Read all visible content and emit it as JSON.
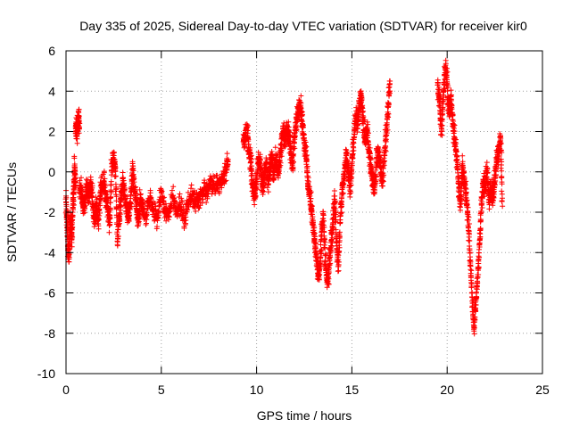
{
  "chart_data": {
    "type": "scatter",
    "title": "Day 335 of 2025, Sidereal Day-to-day VTEC variation (SDTVAR) for receiver kir0",
    "xlabel": "GPS time / hours",
    "ylabel": "SDTVAR / TECUs",
    "xlim": [
      0,
      25
    ],
    "ylim": [
      -10,
      6
    ],
    "xticks": [
      0,
      5,
      10,
      15,
      20,
      25
    ],
    "yticks": [
      -10,
      -8,
      -6,
      -4,
      -2,
      0,
      2,
      4,
      6
    ],
    "grid": true,
    "marker": "+",
    "colors": {
      "series": "#ff0000",
      "axis": "#000000",
      "grid": "#a0a0a0"
    },
    "series": [
      {
        "name": "SDTVAR",
        "segments": [
          {
            "x": [
              0.0,
              0.05,
              0.1,
              0.15,
              0.2,
              0.25,
              0.3,
              0.35,
              0.4,
              0.45,
              0.5
            ],
            "y": [
              -1.2,
              -2.5,
              -3.8,
              -4.1,
              -3.0,
              -2.2,
              -3.5,
              -2.0,
              -1.0,
              0.3,
              -0.5
            ]
          },
          {
            "x": [
              0.5,
              0.55,
              0.6,
              0.65,
              0.7
            ],
            "y": [
              2.0,
              2.4,
              1.9,
              3.0,
              2.2
            ]
          },
          {
            "x": [
              0.7,
              0.8,
              0.9,
              1.0,
              1.1,
              1.2,
              1.3,
              1.4,
              1.5,
              1.6,
              1.7,
              1.8,
              1.9,
              2.0,
              2.1,
              2.2,
              2.3,
              2.4,
              2.5,
              2.6,
              2.7,
              2.8,
              2.9,
              3.0,
              3.1,
              3.2,
              3.3,
              3.4,
              3.5,
              3.6,
              3.7,
              3.8,
              3.9,
              4.0,
              4.2,
              4.4,
              4.6,
              4.8,
              5.0,
              5.2,
              5.4,
              5.6,
              5.8,
              6.0,
              6.2,
              6.4,
              6.6,
              6.8,
              7.0,
              7.2,
              7.4,
              7.6,
              7.8,
              8.0,
              8.2,
              8.4,
              8.5
            ],
            "y": [
              -1.0,
              -0.8,
              -1.8,
              -1.5,
              -0.6,
              -1.2,
              -0.4,
              -1.7,
              -2.3,
              -1.6,
              -2.4,
              -1.0,
              -0.6,
              -0.5,
              -1.4,
              -1.8,
              -2.6,
              0.4,
              0.5,
              0.2,
              -3.6,
              -2.2,
              -1.0,
              -0.3,
              -1.5,
              -1.8,
              -2.4,
              -1.2,
              0.3,
              -1.0,
              -1.7,
              -2.5,
              -1.3,
              -1.8,
              -2.2,
              -1.3,
              -1.9,
              -2.3,
              -1.0,
              -2.0,
              -2.2,
              -1.2,
              -2.0,
              -1.6,
              -2.4,
              -1.6,
              -1.1,
              -1.5,
              -1.3,
              -0.9,
              -1.1,
              -0.6,
              -0.8,
              -0.6,
              -0.3,
              0.1,
              0.5
            ]
          },
          {
            "x": [
              9.3,
              9.4,
              9.5,
              9.6,
              9.7,
              9.8,
              9.9,
              10.0,
              10.1,
              10.2,
              10.3,
              10.4,
              10.5,
              10.6,
              10.7,
              10.8,
              10.9,
              11.0,
              11.1,
              11.2,
              11.3,
              11.4,
              11.5,
              11.6,
              11.7,
              11.8,
              11.9,
              12.0,
              12.1,
              12.2,
              12.3,
              12.4,
              12.5,
              12.6,
              12.7,
              12.8,
              12.9,
              13.0,
              13.1,
              13.2,
              13.3,
              13.4,
              13.5,
              13.6,
              13.7,
              13.8,
              13.9,
              14.0,
              14.1,
              14.2,
              14.3,
              14.4,
              14.5,
              14.6,
              14.7,
              14.8,
              14.9,
              15.0,
              15.1,
              15.2,
              15.3,
              15.4,
              15.5,
              15.6,
              15.7,
              15.8,
              15.9,
              16.0,
              16.1,
              16.2,
              16.3,
              16.4,
              16.5,
              16.6,
              16.7,
              16.8,
              16.9,
              17.0
            ],
            "y": [
              1.5,
              1.8,
              2.2,
              1.0,
              0.5,
              -0.8,
              -1.2,
              -0.4,
              0.6,
              0.3,
              -0.8,
              -0.3,
              0.5,
              -0.6,
              0.2,
              0.7,
              -0.4,
              0.8,
              0.1,
              0.3,
              1.4,
              2.0,
              1.5,
              2.1,
              1.8,
              1.0,
              0.2,
              1.8,
              2.6,
              3.1,
              3.3,
              2.4,
              1.4,
              0.8,
              -0.6,
              -1.2,
              -2.0,
              -3.0,
              -3.8,
              -4.8,
              -5.1,
              -3.2,
              -2.1,
              -4.4,
              -5.4,
              -5.0,
              -3.5,
              -2.6,
              -1.2,
              -3.8,
              -4.6,
              -2.2,
              -0.8,
              -0.2,
              0.8,
              0.2,
              -0.9,
              0.4,
              1.6,
              2.8,
              2.3,
              3.4,
              3.7,
              2.4,
              1.6,
              2.2,
              1.0,
              0.3,
              -0.4,
              -0.9,
              0.6,
              1.0,
              0.2,
              -0.5,
              0.8,
              1.8,
              3.2,
              4.5
            ]
          },
          {
            "x": [
              19.5,
              19.6,
              19.7,
              19.8,
              19.9,
              20.0,
              20.1,
              20.2,
              20.3,
              20.4,
              20.5,
              20.6,
              20.7,
              20.8,
              20.9,
              21.0,
              21.1,
              21.2,
              21.3,
              21.4,
              21.5,
              21.6,
              21.7,
              21.8,
              21.9,
              22.0,
              22.1,
              22.2,
              22.3,
              22.4,
              22.5,
              22.6,
              22.7,
              22.8,
              22.9
            ],
            "y": [
              4.3,
              3.5,
              2.0,
              3.8,
              5.2,
              4.4,
              3.0,
              3.6,
              2.4,
              1.6,
              0.8,
              -0.6,
              -1.6,
              0.4,
              -0.4,
              -1.3,
              -2.4,
              -4.0,
              -6.2,
              -7.8,
              -6.6,
              -5.2,
              -3.6,
              -1.6,
              -0.4,
              -0.8,
              0.2,
              -1.4,
              -0.8,
              -1.4,
              -0.5,
              0.5,
              1.0,
              1.8,
              -1.7
            ]
          }
        ]
      }
    ]
  }
}
